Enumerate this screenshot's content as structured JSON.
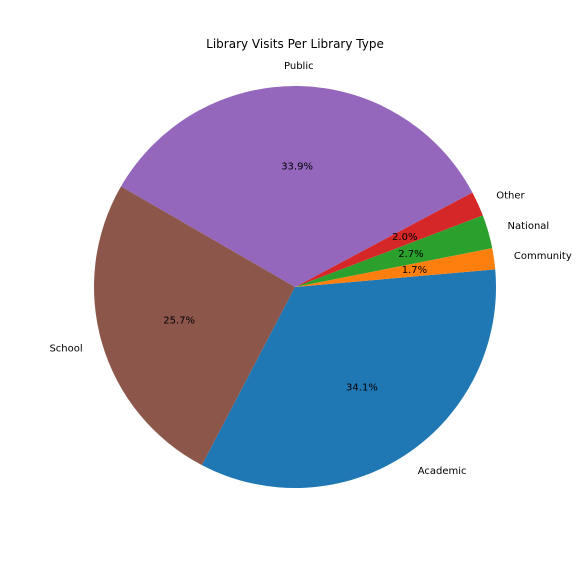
{
  "chart_data": {
    "type": "pie",
    "title": "Library Visits Per Library Type",
    "slices": [
      {
        "label": "Academic",
        "value": 34.1,
        "pct_label": "34.1%",
        "color": "#1f77b4"
      },
      {
        "label": "Community",
        "value": 1.7,
        "pct_label": "1.7%",
        "color": "#ff7f0e"
      },
      {
        "label": "National",
        "value": 2.7,
        "pct_label": "2.7%",
        "color": "#2ca02c"
      },
      {
        "label": "Other",
        "value": 2.0,
        "pct_label": "2.0%",
        "color": "#d62728"
      },
      {
        "label": "Public",
        "value": 33.9,
        "pct_label": "33.9%",
        "color": "#9467bd"
      },
      {
        "label": "School",
        "value": 25.7,
        "pct_label": "25.7%",
        "color": "#8c564b"
      }
    ]
  }
}
